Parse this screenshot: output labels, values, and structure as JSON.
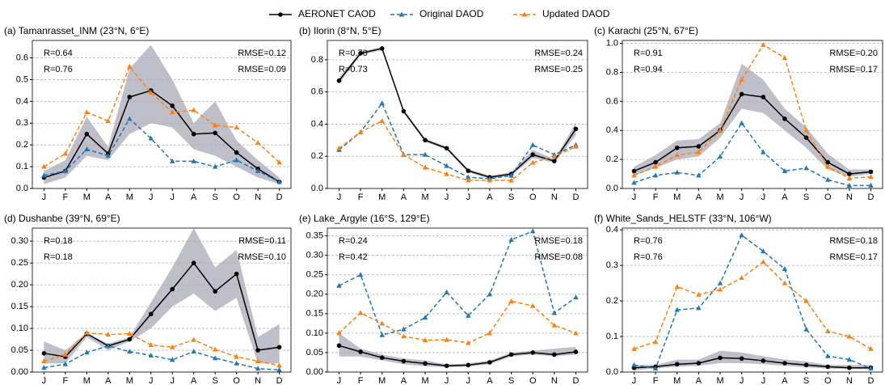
{
  "chart_data": [
    {
      "type": "line",
      "title": "(a) Tamanrasset_INM (23°N, 6°E)",
      "legend": "upper center",
      "grid": "y",
      "categories": [
        "J",
        "F",
        "M",
        "A",
        "M",
        "J",
        "J",
        "A",
        "S",
        "O",
        "N",
        "D"
      ],
      "ylim": [
        0,
        0.68
      ],
      "yticks": [
        {
          "value": 0,
          "label": "0.0"
        },
        0.1,
        0.2,
        0.3,
        0.4,
        0.5,
        0.6
      ],
      "band": {
        "color": "#a9a9b8",
        "lower": [
          0.02,
          0.05,
          0.15,
          0.13,
          0.25,
          0.3,
          0.28,
          0.18,
          0.15,
          0.1,
          0.05,
          0.02
        ],
        "upper": [
          0.08,
          0.13,
          0.33,
          0.19,
          0.55,
          0.66,
          0.5,
          0.3,
          0.4,
          0.22,
          0.13,
          0.05
        ]
      },
      "series": [
        {
          "name": "AERONET CAOD",
          "color": "#000000",
          "marker": "circle",
          "linestyle": "solid",
          "values": [
            0.05,
            0.08,
            0.25,
            0.16,
            0.42,
            0.45,
            0.38,
            0.25,
            0.255,
            0.165,
            0.09,
            0.03
          ]
        },
        {
          "name": "Original DAOD",
          "color": "#1f77b4",
          "marker": "triangle",
          "linestyle": "dashed",
          "values": [
            0.06,
            0.08,
            0.18,
            0.15,
            0.32,
            0.23,
            0.125,
            0.125,
            0.1,
            0.13,
            0.08,
            0.03
          ]
        },
        {
          "name": "Updated DAOD",
          "color": "#ff7f0e",
          "marker": "triangle",
          "linestyle": "dashed",
          "values": [
            0.1,
            0.16,
            0.35,
            0.31,
            0.56,
            0.44,
            0.35,
            0.36,
            0.29,
            0.28,
            0.21,
            0.12
          ]
        }
      ],
      "annotations": [
        {
          "text": "R=0.64",
          "color": "#1f77b4",
          "side": "left"
        },
        {
          "text": "R=0.76",
          "color": "#ff7f0e",
          "side": "left"
        },
        {
          "text": "RMSE=0.12",
          "color": "#1f77b4",
          "side": "right"
        },
        {
          "text": "RMSE=0.09",
          "color": "#ff7f0e",
          "side": "right"
        }
      ]
    },
    {
      "type": "line",
      "title": "(b) Ilorin (8°N, 5°E)",
      "grid": "y",
      "categories": [
        "J",
        "F",
        "M",
        "A",
        "M",
        "J",
        "J",
        "A",
        "S",
        "O",
        "N",
        "D"
      ],
      "ylim": [
        0,
        0.92
      ],
      "yticks": [
        {
          "value": 0,
          "label": "0.0"
        },
        0.2,
        0.4,
        0.6,
        0.8
      ],
      "band": {
        "color": "#a9a9b8",
        "lower": [
          0.65,
          0.83,
          0.86,
          0.47,
          0.29,
          0.24,
          0.1,
          0.06,
          0.08,
          0.19,
          0.16,
          0.33
        ],
        "upper": [
          0.69,
          0.85,
          0.88,
          0.49,
          0.31,
          0.26,
          0.12,
          0.08,
          0.1,
          0.24,
          0.18,
          0.41
        ]
      },
      "series": [
        {
          "name": "AERONET CAOD",
          "color": "#000000",
          "marker": "circle",
          "linestyle": "solid",
          "values": [
            0.67,
            0.84,
            0.87,
            0.48,
            0.3,
            0.25,
            0.11,
            0.07,
            0.09,
            0.21,
            0.17,
            0.37
          ]
        },
        {
          "name": "Original DAOD",
          "color": "#1f77b4",
          "marker": "triangle",
          "linestyle": "dashed",
          "values": [
            0.24,
            0.35,
            0.53,
            0.21,
            0.21,
            0.14,
            0.07,
            0.06,
            0.08,
            0.27,
            0.21,
            0.27
          ]
        },
        {
          "name": "Updated DAOD",
          "color": "#ff7f0e",
          "marker": "triangle",
          "linestyle": "dashed",
          "values": [
            0.25,
            0.35,
            0.42,
            0.21,
            0.13,
            0.09,
            0.05,
            0.05,
            0.05,
            0.16,
            0.2,
            0.26
          ]
        }
      ],
      "annotations": [
        {
          "text": "R=0.70",
          "color": "#1f77b4",
          "side": "left"
        },
        {
          "text": "R=0.73",
          "color": "#ff7f0e",
          "side": "left"
        },
        {
          "text": "RMSE=0.24",
          "color": "#1f77b4",
          "side": "right"
        },
        {
          "text": "RMSE=0.25",
          "color": "#ff7f0e",
          "side": "right"
        }
      ]
    },
    {
      "type": "line",
      "title": "(c) Karachi (25°N, 67°E)",
      "grid": "y",
      "categories": [
        "J",
        "F",
        "M",
        "A",
        "M",
        "J",
        "J",
        "A",
        "S",
        "O",
        "N",
        "D"
      ],
      "ylim": [
        0,
        1.02
      ],
      "yticks": [
        {
          "value": 0,
          "label": "0.0"
        },
        0.2,
        0.4,
        0.6,
        0.8,
        {
          "value": 1,
          "label": "1.0"
        }
      ],
      "band": {
        "color": "#a9a9b8",
        "lower": [
          0.09,
          0.14,
          0.2,
          0.22,
          0.35,
          0.55,
          0.52,
          0.4,
          0.28,
          0.13,
          0.08,
          0.1
        ],
        "upper": [
          0.15,
          0.23,
          0.33,
          0.34,
          0.45,
          0.86,
          0.75,
          0.55,
          0.42,
          0.24,
          0.13,
          0.13
        ]
      },
      "series": [
        {
          "name": "AERONET CAOD",
          "color": "#000000",
          "marker": "circle",
          "linestyle": "solid",
          "values": [
            0.12,
            0.18,
            0.28,
            0.29,
            0.4,
            0.65,
            0.63,
            0.48,
            0.35,
            0.18,
            0.1,
            0.115
          ]
        },
        {
          "name": "Original DAOD",
          "color": "#1f77b4",
          "marker": "triangle",
          "linestyle": "dashed",
          "values": [
            0.04,
            0.09,
            0.11,
            0.09,
            0.22,
            0.45,
            0.25,
            0.12,
            0.14,
            0.06,
            0.02,
            0.02
          ]
        },
        {
          "name": "Updated DAOD",
          "color": "#ff7f0e",
          "marker": "triangle",
          "linestyle": "dashed",
          "values": [
            0.09,
            0.15,
            0.23,
            0.25,
            0.4,
            0.75,
            0.99,
            0.9,
            0.4,
            0.15,
            0.07,
            0.08
          ]
        }
      ],
      "annotations": [
        {
          "text": "R=0.91",
          "color": "#1f77b4",
          "side": "left"
        },
        {
          "text": "R=0.94",
          "color": "#ff7f0e",
          "side": "left"
        },
        {
          "text": "RMSE=0.20",
          "color": "#1f77b4",
          "side": "right"
        },
        {
          "text": "RMSE=0.17",
          "color": "#ff7f0e",
          "side": "right"
        }
      ]
    },
    {
      "type": "line",
      "title": "(d) Dushanbe (39°N, 69°E)",
      "grid": "y",
      "categories": [
        "J",
        "F",
        "M",
        "A",
        "M",
        "J",
        "J",
        "A",
        "S",
        "O",
        "N",
        "D"
      ],
      "ylim": [
        0,
        0.33
      ],
      "yticks": [
        {
          "value": 0,
          "label": "0.00"
        },
        0.05,
        {
          "value": 0.1,
          "label": "0.10"
        },
        0.15,
        {
          "value": 0.2,
          "label": "0.20"
        },
        0.25,
        {
          "value": 0.3,
          "label": "0.30"
        }
      ],
      "band": {
        "color": "#a9a9b8",
        "lower": [
          0.02,
          0.02,
          0.08,
          0.05,
          0.07,
          0.1,
          0.15,
          0.18,
          0.14,
          0.17,
          0.02,
          0.02
        ],
        "upper": [
          0.07,
          0.05,
          0.09,
          0.065,
          0.08,
          0.16,
          0.24,
          0.33,
          0.24,
          0.28,
          0.08,
          0.11
        ]
      },
      "series": [
        {
          "name": "AERONET CAOD",
          "color": "#000000",
          "marker": "circle",
          "linestyle": "solid",
          "values": [
            0.043,
            0.035,
            0.088,
            0.06,
            0.075,
            0.133,
            0.19,
            0.25,
            0.185,
            0.225,
            0.05,
            0.057
          ]
        },
        {
          "name": "Original DAOD",
          "color": "#1f77b4",
          "marker": "triangle",
          "linestyle": "dashed",
          "values": [
            0.01,
            0.018,
            0.045,
            0.06,
            0.047,
            0.038,
            0.028,
            0.047,
            0.032,
            0.02,
            0.008,
            0.005
          ]
        },
        {
          "name": "Updated DAOD",
          "color": "#ff7f0e",
          "marker": "triangle",
          "linestyle": "dashed",
          "values": [
            0.025,
            0.04,
            0.09,
            0.086,
            0.088,
            0.062,
            0.057,
            0.074,
            0.052,
            0.035,
            0.025,
            0.015
          ]
        }
      ],
      "annotations": [
        {
          "text": "R=0.18",
          "color": "#1f77b4",
          "side": "left"
        },
        {
          "text": "R=0.18",
          "color": "#ff7f0e",
          "side": "left"
        },
        {
          "text": "RMSE=0.11",
          "color": "#1f77b4",
          "side": "right"
        },
        {
          "text": "RMSE=0.10",
          "color": "#ff7f0e",
          "side": "right"
        }
      ]
    },
    {
      "type": "line",
      "title": "(e) Lake_Argyle (16°S, 129°E)",
      "grid": "y",
      "categories": [
        "J",
        "F",
        "M",
        "A",
        "M",
        "J",
        "J",
        "A",
        "S",
        "O",
        "N",
        "D"
      ],
      "ylim": [
        0,
        0.37
      ],
      "yticks": [
        {
          "value": 0,
          "label": "0.00"
        },
        0.05,
        {
          "value": 0.1,
          "label": "0.10"
        },
        0.15,
        {
          "value": 0.2,
          "label": "0.20"
        },
        0.25,
        {
          "value": 0.3,
          "label": "0.30"
        },
        0.35
      ],
      "band": {
        "color": "#a9a9b8",
        "lower": [
          0.04,
          0.04,
          0.03,
          0.02,
          0.015,
          0.012,
          0.014,
          0.02,
          0.04,
          0.045,
          0.04,
          0.045
        ],
        "upper": [
          0.1,
          0.06,
          0.045,
          0.035,
          0.03,
          0.02,
          0.022,
          0.03,
          0.05,
          0.055,
          0.06,
          0.065
        ]
      },
      "series": [
        {
          "name": "AERONET CAOD",
          "color": "#000000",
          "marker": "circle",
          "linestyle": "solid",
          "values": [
            0.068,
            0.052,
            0.037,
            0.028,
            0.022,
            0.016,
            0.018,
            0.025,
            0.045,
            0.05,
            0.045,
            0.052
          ]
        },
        {
          "name": "Original DAOD",
          "color": "#1f77b4",
          "marker": "triangle",
          "linestyle": "dashed",
          "values": [
            0.222,
            0.25,
            0.095,
            0.11,
            0.14,
            0.205,
            0.145,
            0.2,
            0.34,
            0.362,
            0.152,
            0.192
          ]
        },
        {
          "name": "Updated DAOD",
          "color": "#ff7f0e",
          "marker": "triangle",
          "linestyle": "dashed",
          "values": [
            0.1,
            0.152,
            0.125,
            0.092,
            0.082,
            0.083,
            0.075,
            0.1,
            0.182,
            0.17,
            0.12,
            0.1
          ]
        }
      ],
      "annotations": [
        {
          "text": "R=0.24",
          "color": "#1f77b4",
          "side": "left"
        },
        {
          "text": "R=0.42",
          "color": "#ff7f0e",
          "side": "left"
        },
        {
          "text": "RMSE=0.18",
          "color": "#1f77b4",
          "side": "right"
        },
        {
          "text": "RMSE=0.08",
          "color": "#ff7f0e",
          "side": "right"
        }
      ]
    },
    {
      "type": "line",
      "title": "(f) White_Sands_HELSTF (33°N, 106°W)",
      "grid": "y",
      "categories": [
        "J",
        "F",
        "M",
        "A",
        "M",
        "J",
        "J",
        "A",
        "S",
        "O",
        "N",
        "D"
      ],
      "ylim": [
        0,
        0.405
      ],
      "yticks": [
        {
          "value": 0,
          "label": "0.0"
        },
        0.1,
        0.2,
        0.3,
        0.4
      ],
      "band": {
        "color": "#a9a9b8",
        "lower": [
          0.005,
          0.01,
          0.015,
          0.018,
          0.025,
          0.025,
          0.022,
          0.018,
          0.013,
          0.01,
          0.008,
          0.008
        ],
        "upper": [
          0.02,
          0.02,
          0.035,
          0.035,
          0.06,
          0.055,
          0.045,
          0.035,
          0.03,
          0.02,
          0.02,
          0.02
        ]
      },
      "series": [
        {
          "name": "AERONET CAOD",
          "color": "#000000",
          "marker": "circle",
          "linestyle": "solid",
          "values": [
            0.012,
            0.015,
            0.022,
            0.025,
            0.04,
            0.038,
            0.032,
            0.025,
            0.02,
            0.015,
            0.012,
            0.012
          ]
        },
        {
          "name": "Original DAOD",
          "color": "#1f77b4",
          "marker": "triangle",
          "linestyle": "dashed",
          "values": [
            0.02,
            0.01,
            0.175,
            0.18,
            0.25,
            0.385,
            0.34,
            0.29,
            0.12,
            0.045,
            0.035,
            0.01
          ]
        },
        {
          "name": "Updated DAOD",
          "color": "#ff7f0e",
          "marker": "triangle",
          "linestyle": "dashed",
          "values": [
            0.065,
            0.085,
            0.24,
            0.218,
            0.232,
            0.265,
            0.31,
            0.25,
            0.2,
            0.115,
            0.1,
            0.065
          ]
        }
      ],
      "annotations": [
        {
          "text": "R=0.76",
          "color": "#1f77b4",
          "side": "left"
        },
        {
          "text": "R=0.76",
          "color": "#ff7f0e",
          "side": "left"
        },
        {
          "text": "RMSE=0.18",
          "color": "#1f77b4",
          "side": "right"
        },
        {
          "text": "RMSE=0.17",
          "color": "#ff7f0e",
          "side": "right"
        }
      ]
    }
  ]
}
